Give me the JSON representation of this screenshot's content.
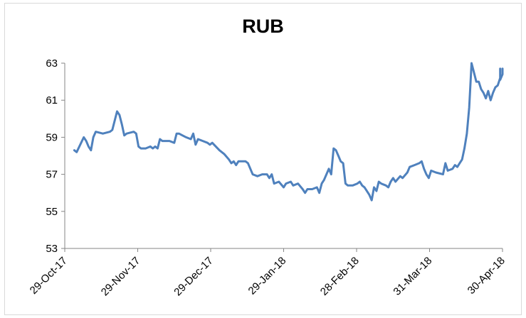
{
  "chart_data": {
    "type": "line",
    "title": "RUB",
    "xlabel": "",
    "ylabel": "",
    "x_tick_labels": [
      "29-Oct-17",
      "29-Nov-17",
      "29-Dec-17",
      "29-Jan-18",
      "28-Feb-18",
      "31-Mar-18",
      "30-Apr-18"
    ],
    "x_range": [
      "2017-10-29",
      "2018-05-01"
    ],
    "ylim": [
      53,
      63
    ],
    "y_ticks": [
      53,
      55,
      57,
      59,
      61,
      63
    ],
    "grid": false,
    "legend": "none",
    "line_color": "#4f81bd",
    "series": [
      {
        "points": [
          [
            "2017-11-02",
            58.3
          ],
          [
            "2017-11-03",
            58.2
          ],
          [
            "2017-11-06",
            59.0
          ],
          [
            "2017-11-07",
            58.8
          ],
          [
            "2017-11-08",
            58.5
          ],
          [
            "2017-11-09",
            58.3
          ],
          [
            "2017-11-10",
            59.0
          ],
          [
            "2017-11-11",
            59.3
          ],
          [
            "2017-11-14",
            59.2
          ],
          [
            "2017-11-17",
            59.3
          ],
          [
            "2017-11-18",
            59.4
          ],
          [
            "2017-11-20",
            60.4
          ],
          [
            "2017-11-21",
            60.2
          ],
          [
            "2017-11-22",
            59.7
          ],
          [
            "2017-11-23",
            59.1
          ],
          [
            "2017-11-24",
            59.2
          ],
          [
            "2017-11-27",
            59.3
          ],
          [
            "2017-11-28",
            59.2
          ],
          [
            "2017-11-29",
            58.5
          ],
          [
            "2017-11-30",
            58.4
          ],
          [
            "2017-12-02",
            58.4
          ],
          [
            "2017-12-04",
            58.5
          ],
          [
            "2017-12-05",
            58.4
          ],
          [
            "2017-12-06",
            58.5
          ],
          [
            "2017-12-07",
            58.4
          ],
          [
            "2017-12-08",
            58.9
          ],
          [
            "2017-12-09",
            58.8
          ],
          [
            "2017-12-12",
            58.8
          ],
          [
            "2017-12-14",
            58.7
          ],
          [
            "2017-12-15",
            59.2
          ],
          [
            "2017-12-16",
            59.2
          ],
          [
            "2017-12-19",
            59.0
          ],
          [
            "2017-12-21",
            58.9
          ],
          [
            "2017-12-22",
            59.2
          ],
          [
            "2017-12-23",
            58.6
          ],
          [
            "2017-12-24",
            58.9
          ],
          [
            "2017-12-26",
            58.8
          ],
          [
            "2017-12-28",
            58.7
          ],
          [
            "2017-12-29",
            58.6
          ],
          [
            "2017-12-30",
            58.7
          ],
          [
            "2018-01-02",
            58.3
          ],
          [
            "2018-01-04",
            58.1
          ],
          [
            "2018-01-06",
            57.8
          ],
          [
            "2018-01-07",
            57.6
          ],
          [
            "2018-01-08",
            57.7
          ],
          [
            "2018-01-09",
            57.5
          ],
          [
            "2018-01-10",
            57.7
          ],
          [
            "2018-01-13",
            57.7
          ],
          [
            "2018-01-14",
            57.6
          ],
          [
            "2018-01-16",
            57.0
          ],
          [
            "2018-01-18",
            56.9
          ],
          [
            "2018-01-20",
            57.0
          ],
          [
            "2018-01-22",
            57.0
          ],
          [
            "2018-01-23",
            56.8
          ],
          [
            "2018-01-24",
            57.0
          ],
          [
            "2018-01-25",
            56.5
          ],
          [
            "2018-01-27",
            56.6
          ],
          [
            "2018-01-29",
            56.3
          ],
          [
            "2018-01-30",
            56.5
          ],
          [
            "2018-02-01",
            56.6
          ],
          [
            "2018-02-02",
            56.4
          ],
          [
            "2018-02-04",
            56.5
          ],
          [
            "2018-02-06",
            56.2
          ],
          [
            "2018-02-07",
            56.0
          ],
          [
            "2018-02-08",
            56.2
          ],
          [
            "2018-02-10",
            56.2
          ],
          [
            "2018-02-12",
            56.3
          ],
          [
            "2018-02-13",
            56.0
          ],
          [
            "2018-02-14",
            56.5
          ],
          [
            "2018-02-15",
            56.7
          ],
          [
            "2018-02-17",
            57.3
          ],
          [
            "2018-02-18",
            57.0
          ],
          [
            "2018-02-19",
            58.4
          ],
          [
            "2018-02-20",
            58.3
          ],
          [
            "2018-02-21",
            58.0
          ],
          [
            "2018-02-22",
            57.7
          ],
          [
            "2018-02-23",
            57.6
          ],
          [
            "2018-02-24",
            56.5
          ],
          [
            "2018-02-25",
            56.4
          ],
          [
            "2018-02-27",
            56.4
          ],
          [
            "2018-03-01",
            56.5
          ],
          [
            "2018-03-02",
            56.6
          ],
          [
            "2018-03-03",
            56.4
          ],
          [
            "2018-03-04",
            56.3
          ],
          [
            "2018-03-06",
            55.9
          ],
          [
            "2018-03-07",
            55.6
          ],
          [
            "2018-03-08",
            56.3
          ],
          [
            "2018-03-09",
            56.1
          ],
          [
            "2018-03-10",
            56.6
          ],
          [
            "2018-03-11",
            56.5
          ],
          [
            "2018-03-13",
            56.4
          ],
          [
            "2018-03-14",
            56.3
          ],
          [
            "2018-03-15",
            56.6
          ],
          [
            "2018-03-16",
            56.8
          ],
          [
            "2018-03-17",
            56.6
          ],
          [
            "2018-03-19",
            56.9
          ],
          [
            "2018-03-20",
            56.8
          ],
          [
            "2018-03-22",
            57.1
          ],
          [
            "2018-03-23",
            57.4
          ],
          [
            "2018-03-25",
            57.5
          ],
          [
            "2018-03-27",
            57.6
          ],
          [
            "2018-03-28",
            57.7
          ],
          [
            "2018-03-29",
            57.3
          ],
          [
            "2018-03-30",
            57.0
          ],
          [
            "2018-03-31",
            56.8
          ],
          [
            "2018-04-01",
            57.2
          ],
          [
            "2018-04-03",
            57.1
          ],
          [
            "2018-04-06",
            57.0
          ],
          [
            "2018-04-07",
            57.6
          ],
          [
            "2018-04-08",
            57.2
          ],
          [
            "2018-04-10",
            57.3
          ],
          [
            "2018-04-11",
            57.5
          ],
          [
            "2018-04-12",
            57.4
          ],
          [
            "2018-04-13",
            57.6
          ],
          [
            "2018-04-14",
            57.8
          ],
          [
            "2018-04-15",
            58.4
          ],
          [
            "2018-04-16",
            59.2
          ],
          [
            "2018-04-17",
            60.6
          ],
          [
            "2018-04-18",
            63.0
          ],
          [
            "2018-04-19",
            62.5
          ],
          [
            "2018-04-20",
            62.0
          ],
          [
            "2018-04-21",
            62.0
          ],
          [
            "2018-04-22",
            61.6
          ],
          [
            "2018-04-23",
            61.4
          ],
          [
            "2018-04-24",
            61.1
          ],
          [
            "2018-04-25",
            61.5
          ],
          [
            "2018-04-26",
            61.0
          ],
          [
            "2018-04-27",
            61.4
          ],
          [
            "2018-04-28",
            61.7
          ],
          [
            "2018-04-29",
            61.8
          ],
          [
            "2018-04-30",
            62.2
          ],
          [
            "2018-04-30",
            62.7
          ],
          [
            "2018-04-30",
            62.1
          ],
          [
            "2018-05-01",
            62.4
          ],
          [
            "2018-05-01",
            62.7
          ]
        ]
      }
    ]
  }
}
